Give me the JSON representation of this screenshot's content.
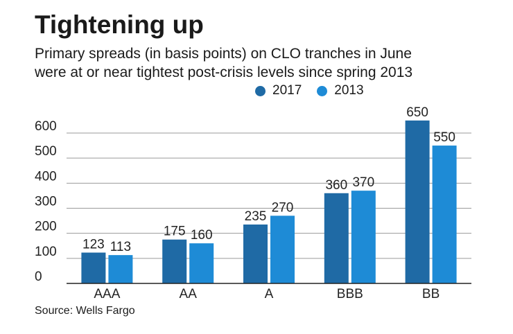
{
  "chart_data": {
    "type": "bar",
    "title": "Tightening up",
    "subtitle_lines": [
      "Primary spreads (in basis points) on CLO tranches in June",
      "were at or near tightest post-crisis levels since spring 2013"
    ],
    "categories": [
      "AAA",
      "AA",
      "A",
      "BBB",
      "BB"
    ],
    "series": [
      {
        "name": "2017",
        "color": "#1f6aa5",
        "values": [
          123,
          175,
          235,
          360,
          650
        ]
      },
      {
        "name": "2013",
        "color": "#1e8bd6",
        "values": [
          113,
          160,
          270,
          370,
          550
        ]
      }
    ],
    "yticks": [
      0,
      100,
      200,
      300,
      400,
      500,
      600
    ],
    "ylim": [
      0,
      650
    ],
    "xlabel": "",
    "ylabel": "",
    "grid": true,
    "legend": "top-right",
    "source": "Source: Wells Fargo"
  }
}
